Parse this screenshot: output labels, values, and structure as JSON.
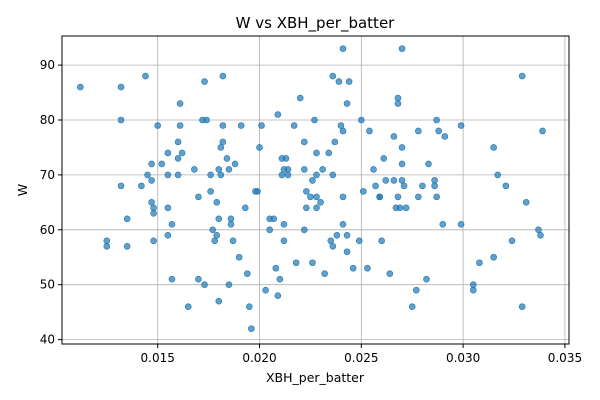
{
  "chart_data": {
    "type": "scatter",
    "title": "W vs XBH_per_batter",
    "xlabel": "XBH_per_batter",
    "ylabel": "W",
    "xlim": [
      0.0103,
      0.0352
    ],
    "ylim": [
      39.2,
      95.3
    ],
    "xticks": [
      "0.015",
      "0.020",
      "0.025",
      "0.030",
      "0.035"
    ],
    "yticks": [
      "40",
      "50",
      "60",
      "70",
      "80",
      "90"
    ],
    "grid": true,
    "color": "#1f77b4",
    "points": [
      [
        0.0112,
        86
      ],
      [
        0.0132,
        86
      ],
      [
        0.0144,
        88
      ],
      [
        0.0132,
        80
      ],
      [
        0.0132,
        68
      ],
      [
        0.0125,
        58
      ],
      [
        0.0125,
        57
      ],
      [
        0.0135,
        57
      ],
      [
        0.0135,
        62
      ],
      [
        0.0142,
        68
      ],
      [
        0.0145,
        70
      ],
      [
        0.0147,
        72
      ],
      [
        0.0147,
        69
      ],
      [
        0.0147,
        65
      ],
      [
        0.0148,
        64
      ],
      [
        0.0148,
        63
      ],
      [
        0.0148,
        58
      ],
      [
        0.015,
        79
      ],
      [
        0.0152,
        72
      ],
      [
        0.0155,
        74
      ],
      [
        0.0155,
        70
      ],
      [
        0.0155,
        64
      ],
      [
        0.0155,
        59
      ],
      [
        0.0157,
        61
      ],
      [
        0.0157,
        51
      ],
      [
        0.016,
        76
      ],
      [
        0.016,
        73
      ],
      [
        0.0161,
        79
      ],
      [
        0.0161,
        83
      ],
      [
        0.0162,
        74
      ],
      [
        0.016,
        70
      ],
      [
        0.0165,
        46
      ],
      [
        0.0168,
        71
      ],
      [
        0.017,
        51
      ],
      [
        0.017,
        66
      ],
      [
        0.0172,
        80
      ],
      [
        0.0173,
        87
      ],
      [
        0.0174,
        80
      ],
      [
        0.0173,
        50
      ],
      [
        0.0176,
        70
      ],
      [
        0.0176,
        67
      ],
      [
        0.0177,
        60
      ],
      [
        0.0178,
        58
      ],
      [
        0.0179,
        59
      ],
      [
        0.0179,
        65
      ],
      [
        0.018,
        62
      ],
      [
        0.018,
        47
      ],
      [
        0.018,
        71
      ],
      [
        0.0181,
        70
      ],
      [
        0.0181,
        75
      ],
      [
        0.0182,
        79
      ],
      [
        0.0182,
        88
      ],
      [
        0.0182,
        76
      ],
      [
        0.0184,
        73
      ],
      [
        0.0185,
        71
      ],
      [
        0.0185,
        50
      ],
      [
        0.0186,
        62
      ],
      [
        0.0186,
        61
      ],
      [
        0.0187,
        58
      ],
      [
        0.0188,
        72
      ],
      [
        0.019,
        55
      ],
      [
        0.0191,
        79
      ],
      [
        0.0193,
        64
      ],
      [
        0.0194,
        52
      ],
      [
        0.0195,
        46
      ],
      [
        0.0196,
        42
      ],
      [
        0.0198,
        67
      ],
      [
        0.0199,
        67
      ],
      [
        0.02,
        75
      ],
      [
        0.0201,
        79
      ],
      [
        0.0203,
        49
      ],
      [
        0.0205,
        60
      ],
      [
        0.0205,
        62
      ],
      [
        0.0207,
        62
      ],
      [
        0.0208,
        53
      ],
      [
        0.0209,
        81
      ],
      [
        0.0209,
        48
      ],
      [
        0.021,
        51
      ],
      [
        0.0211,
        73
      ],
      [
        0.0211,
        70
      ],
      [
        0.0212,
        71
      ],
      [
        0.0212,
        61
      ],
      [
        0.0212,
        58
      ],
      [
        0.0213,
        73
      ],
      [
        0.0214,
        71
      ],
      [
        0.0214,
        70
      ],
      [
        0.0217,
        79
      ],
      [
        0.0218,
        54
      ],
      [
        0.022,
        84
      ],
      [
        0.0222,
        76
      ],
      [
        0.0222,
        60
      ],
      [
        0.0222,
        71
      ],
      [
        0.0223,
        67
      ],
      [
        0.0223,
        64
      ],
      [
        0.0225,
        66
      ],
      [
        0.0226,
        69
      ],
      [
        0.0226,
        54
      ],
      [
        0.0227,
        80
      ],
      [
        0.0228,
        70
      ],
      [
        0.0228,
        74
      ],
      [
        0.0228,
        66
      ],
      [
        0.0228,
        64
      ],
      [
        0.023,
        65
      ],
      [
        0.0231,
        71
      ],
      [
        0.0232,
        52
      ],
      [
        0.0234,
        74
      ],
      [
        0.0235,
        58
      ],
      [
        0.0236,
        88
      ],
      [
        0.0236,
        70
      ],
      [
        0.0236,
        57
      ],
      [
        0.0237,
        76
      ],
      [
        0.0238,
        59
      ],
      [
        0.0239,
        87
      ],
      [
        0.024,
        79
      ],
      [
        0.0241,
        61
      ],
      [
        0.0241,
        78
      ],
      [
        0.0241,
        93
      ],
      [
        0.0241,
        66
      ],
      [
        0.0243,
        56
      ],
      [
        0.0243,
        59
      ],
      [
        0.0243,
        83
      ],
      [
        0.0244,
        87
      ],
      [
        0.0246,
        53
      ],
      [
        0.0249,
        58
      ],
      [
        0.025,
        80
      ],
      [
        0.0251,
        67
      ],
      [
        0.0253,
        53
      ],
      [
        0.0254,
        78
      ],
      [
        0.0256,
        71
      ],
      [
        0.0257,
        68
      ],
      [
        0.0259,
        66
      ],
      [
        0.0259,
        66
      ],
      [
        0.026,
        58
      ],
      [
        0.0261,
        73
      ],
      [
        0.0262,
        69
      ],
      [
        0.0264,
        52
      ],
      [
        0.0266,
        69
      ],
      [
        0.0266,
        77
      ],
      [
        0.0267,
        64
      ],
      [
        0.0268,
        83
      ],
      [
        0.0268,
        84
      ],
      [
        0.0268,
        66
      ],
      [
        0.0269,
        64
      ],
      [
        0.027,
        93
      ],
      [
        0.027,
        75
      ],
      [
        0.027,
        69
      ],
      [
        0.027,
        72
      ],
      [
        0.0271,
        68
      ],
      [
        0.0272,
        64
      ],
      [
        0.0275,
        46
      ],
      [
        0.0277,
        49
      ],
      [
        0.0278,
        66
      ],
      [
        0.0278,
        78
      ],
      [
        0.028,
        68
      ],
      [
        0.0282,
        51
      ],
      [
        0.0283,
        72
      ],
      [
        0.0286,
        69
      ],
      [
        0.0286,
        68
      ],
      [
        0.0287,
        66
      ],
      [
        0.0287,
        80
      ],
      [
        0.0288,
        78
      ],
      [
        0.029,
        61
      ],
      [
        0.0291,
        77
      ],
      [
        0.0299,
        61
      ],
      [
        0.0299,
        79
      ],
      [
        0.0305,
        50
      ],
      [
        0.0305,
        49
      ],
      [
        0.0308,
        54
      ],
      [
        0.0315,
        75
      ],
      [
        0.0315,
        55
      ],
      [
        0.0317,
        70
      ],
      [
        0.0321,
        68
      ],
      [
        0.0324,
        58
      ],
      [
        0.0329,
        46
      ],
      [
        0.0329,
        88
      ],
      [
        0.0331,
        65
      ],
      [
        0.0337,
        60
      ],
      [
        0.0338,
        59
      ],
      [
        0.0339,
        78
      ]
    ]
  }
}
